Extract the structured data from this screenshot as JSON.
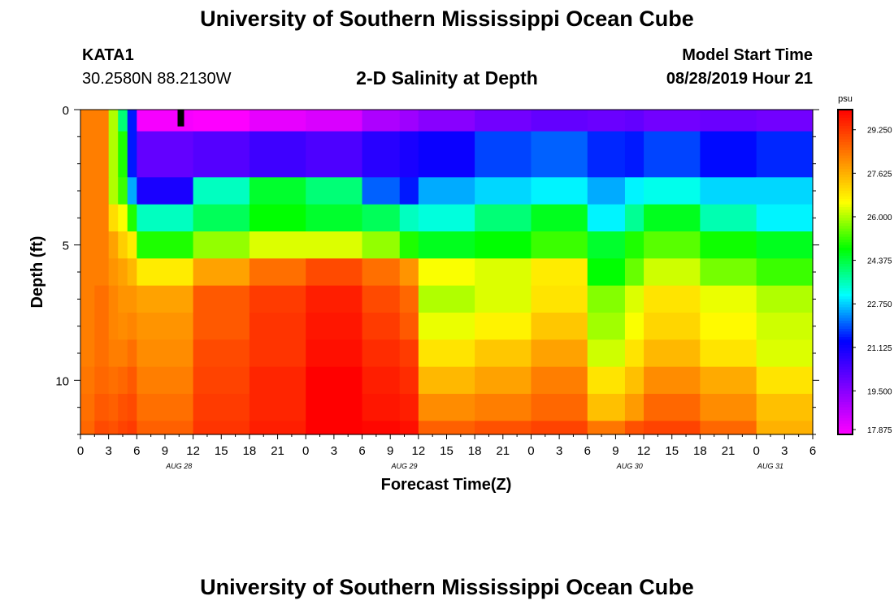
{
  "header": {
    "title": "University of Southern Mississippi Ocean Cube",
    "station_id": "KATA1",
    "coordinates": "30.2580N 88.2130W",
    "plot_title": "2-D Salinity at Depth",
    "model_start_label": "Model Start Time",
    "model_start_value": "08/28/2019 Hour 21"
  },
  "footer": {
    "title": "University of Southern Mississippi Ocean Cube"
  },
  "colors": {
    "background": "#ffffff",
    "axis": "#000000",
    "colormap": [
      "#ff00ff",
      "#8000ff",
      "#0000ff",
      "#00ffff",
      "#00ff00",
      "#ffff00",
      "#ff8000",
      "#ff0000"
    ]
  },
  "chart_data": {
    "type": "heatmap",
    "title": "2-D Salinity at Depth",
    "xlabel": "Forecast Time(Z)",
    "ylabel": "Depth (ft)",
    "x_ticks": [
      "0",
      "3",
      "6",
      "9",
      "12",
      "15",
      "18",
      "21",
      "0",
      "3",
      "6",
      "9",
      "12",
      "15",
      "18",
      "21",
      "0",
      "3",
      "6",
      "9",
      "12",
      "15",
      "18",
      "21",
      "0",
      "3",
      "6"
    ],
    "date_labels": [
      {
        "label": "AUG 28",
        "hour_offset": 10.5
      },
      {
        "label": "AUG 29",
        "hour_offset": 34.5
      },
      {
        "label": "AUG 30",
        "hour_offset": 58.5
      },
      {
        "label": "AUG 31",
        "hour_offset": 73.5
      }
    ],
    "y_ticks": [
      "0",
      "5",
      "10"
    ],
    "y_tick_values": [
      0,
      5,
      10
    ],
    "xlim": [
      0,
      78
    ],
    "ylim": [
      0,
      12
    ],
    "depth_layers": [
      {
        "top": 0,
        "bottom": 0.8
      },
      {
        "top": 0.8,
        "bottom": 2.5
      },
      {
        "top": 2.5,
        "bottom": 3.5
      },
      {
        "top": 3.5,
        "bottom": 4.5
      },
      {
        "top": 4.5,
        "bottom": 5.5
      },
      {
        "top": 5.5,
        "bottom": 6.5
      },
      {
        "top": 6.5,
        "bottom": 7.5
      },
      {
        "top": 7.5,
        "bottom": 8.5
      },
      {
        "top": 8.5,
        "bottom": 9.5
      },
      {
        "top": 9.5,
        "bottom": 10.5
      },
      {
        "top": 10.5,
        "bottom": 11.5
      },
      {
        "top": 11.5,
        "bottom": 12
      }
    ],
    "time_columns": [
      {
        "start": 0,
        "end": 1.5
      },
      {
        "start": 1.5,
        "end": 3
      },
      {
        "start": 3,
        "end": 4
      },
      {
        "start": 4,
        "end": 5
      },
      {
        "start": 5,
        "end": 6
      },
      {
        "start": 6,
        "end": 12
      },
      {
        "start": 12,
        "end": 18
      },
      {
        "start": 18,
        "end": 24
      },
      {
        "start": 24,
        "end": 30
      },
      {
        "start": 30,
        "end": 34
      },
      {
        "start": 34,
        "end": 36
      },
      {
        "start": 36,
        "end": 42
      },
      {
        "start": 42,
        "end": 48
      },
      {
        "start": 48,
        "end": 54
      },
      {
        "start": 54,
        "end": 58
      },
      {
        "start": 58,
        "end": 60
      },
      {
        "start": 60,
        "end": 66
      },
      {
        "start": 66,
        "end": 72
      },
      {
        "start": 72,
        "end": 78
      }
    ],
    "salinity_psu": [
      [
        28.3,
        28.3,
        26.0,
        24.0,
        21.5,
        18.0,
        17.9,
        18.2,
        18.4,
        19.0,
        19.2,
        19.5,
        19.8,
        20.0,
        19.9,
        20.0,
        19.8,
        19.9,
        19.8
      ],
      [
        28.3,
        28.3,
        26.0,
        25.0,
        21.5,
        20.0,
        20.2,
        20.5,
        20.3,
        20.8,
        21.0,
        21.2,
        21.8,
        22.0,
        21.6,
        21.5,
        21.8,
        21.4,
        21.6
      ],
      [
        28.3,
        28.3,
        26.0,
        25.2,
        22.5,
        21.0,
        23.5,
        24.5,
        24.0,
        22.0,
        21.5,
        22.5,
        22.8,
        23.0,
        22.5,
        23.0,
        23.2,
        22.8,
        22.8
      ],
      [
        28.3,
        28.3,
        27.0,
        26.5,
        25.0,
        23.5,
        24.2,
        24.8,
        24.5,
        24.2,
        23.5,
        23.3,
        24.0,
        24.6,
        23.0,
        23.8,
        24.6,
        23.6,
        23.0
      ],
      [
        28.3,
        28.3,
        27.8,
        27.2,
        26.8,
        25.0,
        25.8,
        26.3,
        26.3,
        25.8,
        25.0,
        24.6,
        24.8,
        25.2,
        24.5,
        25.0,
        25.4,
        24.9,
        24.6
      ],
      [
        28.3,
        28.3,
        28.0,
        27.8,
        27.5,
        26.8,
        27.8,
        28.5,
        29.0,
        28.5,
        28.0,
        26.5,
        26.3,
        26.8,
        24.8,
        25.5,
        26.2,
        25.6,
        25.2
      ],
      [
        28.3,
        28.5,
        28.2,
        28.0,
        28.0,
        27.8,
        28.8,
        29.2,
        29.6,
        29.0,
        28.6,
        26.0,
        26.3,
        26.9,
        25.7,
        26.3,
        26.9,
        26.4,
        26.0
      ],
      [
        28.3,
        28.5,
        28.2,
        28.1,
        28.2,
        28.0,
        28.8,
        29.3,
        29.7,
        29.2,
        28.8,
        26.4,
        26.7,
        27.3,
        25.9,
        26.5,
        27.1,
        26.6,
        26.2
      ],
      [
        28.3,
        28.5,
        28.3,
        28.3,
        28.5,
        28.1,
        29.0,
        29.3,
        29.8,
        29.4,
        29.2,
        26.9,
        27.3,
        27.8,
        26.2,
        26.9,
        27.5,
        26.9,
        26.3
      ],
      [
        28.4,
        28.6,
        28.5,
        28.6,
        28.8,
        28.3,
        29.1,
        29.5,
        30.0,
        29.6,
        29.4,
        27.5,
        27.8,
        28.3,
        26.9,
        27.4,
        28.1,
        27.7,
        26.9
      ],
      [
        28.5,
        28.8,
        28.7,
        28.9,
        29.0,
        28.5,
        29.2,
        29.5,
        30.1,
        29.7,
        29.6,
        28.1,
        28.3,
        28.6,
        27.4,
        27.9,
        28.6,
        28.1,
        27.4
      ],
      [
        28.6,
        29.0,
        28.9,
        29.1,
        29.2,
        28.7,
        29.3,
        29.6,
        30.3,
        29.9,
        29.8,
        28.7,
        28.9,
        29.1,
        28.4,
        28.9,
        29.1,
        28.6,
        27.6
      ]
    ],
    "missing_marker": {
      "time": 10,
      "depth": 0.25
    },
    "colorbar": {
      "units": "psu",
      "min": 17.875,
      "max": 30.0,
      "ticks": [
        "29.250",
        "27.625",
        "26.000",
        "24.375",
        "22.750",
        "21.125",
        "19.500",
        "17.875"
      ],
      "tick_values": [
        29.25,
        27.625,
        26.0,
        24.375,
        22.75,
        21.125,
        19.5,
        17.875
      ]
    }
  }
}
